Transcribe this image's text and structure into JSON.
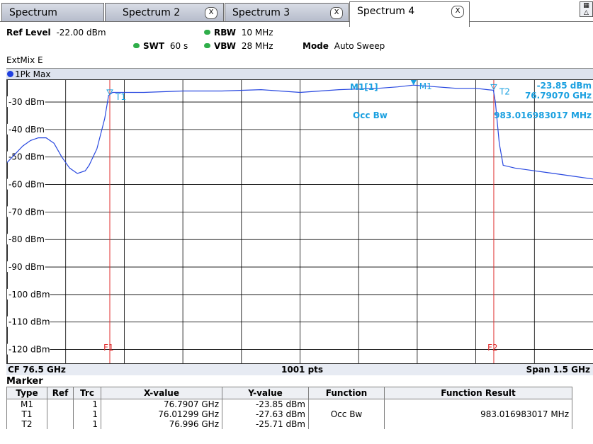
{
  "tabs": [
    {
      "label": "Spectrum",
      "closable": false,
      "active": false
    },
    {
      "label": "Spectrum 2",
      "closable": true,
      "active": false
    },
    {
      "label": "Spectrum 3",
      "closable": true,
      "active": false
    },
    {
      "label": "Spectrum 4",
      "closable": true,
      "active": true
    }
  ],
  "close_glyph": "X",
  "header": {
    "ref_level_label": "Ref Level",
    "ref_level_value": "-22.00 dBm",
    "rbw_label": "RBW",
    "rbw_value": "10 MHz",
    "swt_label": "SWT",
    "swt_value": "60 s",
    "vbw_label": "VBW",
    "vbw_value": "28 MHz",
    "mode_label": "Mode",
    "mode_value": "Auto Sweep",
    "mixer": "ExtMix E"
  },
  "trace_label": "1Pk Max",
  "axis": {
    "cf": "CF 76.5 GHz",
    "pts": "1001 pts",
    "span": "Span 1.5 GHz"
  },
  "overlay": {
    "m1_readout_label": "M1[1]",
    "m1_level": "-23.85 dBm",
    "m1_freq": "76.79070 GHz",
    "occbw_label": "Occ Bw",
    "occbw_value": "983.016983017 MHz",
    "markers": [
      "T1",
      "M1",
      "T2"
    ],
    "lines": [
      "F1",
      "F2"
    ]
  },
  "colors": {
    "trace": "#2848e0",
    "marker": "#1aa0e0",
    "limit_line": "#e03030",
    "grid": "#000000"
  },
  "chart_data": {
    "type": "line",
    "x_unit": "GHz",
    "y_unit": "dBm",
    "xlim": [
      75.75,
      77.25
    ],
    "ylim": [
      -125,
      -22
    ],
    "yticks": [
      {
        "value": -30,
        "label": "-30 dBm"
      },
      {
        "value": -40,
        "label": "-40 dBm"
      },
      {
        "value": -50,
        "label": "-50 dBm"
      },
      {
        "value": -60,
        "label": "-60 dBm"
      },
      {
        "value": -70,
        "label": "-70 dBm"
      },
      {
        "value": -80,
        "label": "-80 dBm"
      },
      {
        "value": -90,
        "label": "-90 dBm"
      },
      {
        "value": -100,
        "label": "-100 dBm"
      },
      {
        "value": -110,
        "label": "-110 dBm"
      },
      {
        "value": -120,
        "label": "-120 dBm"
      }
    ],
    "grid": true,
    "series": [
      {
        "x": [
          75.75,
          75.77,
          75.79,
          75.81,
          75.83,
          75.85,
          75.87,
          75.89,
          75.91,
          75.93,
          75.95,
          75.96,
          75.98,
          76.0,
          76.01,
          76.02,
          76.05,
          76.1,
          76.2,
          76.3,
          76.4,
          76.5,
          76.6,
          76.7,
          76.75,
          76.79,
          76.85,
          76.9,
          76.95,
          76.98,
          76.995,
          77.0,
          77.01,
          77.02,
          77.05,
          77.1,
          77.15,
          77.2,
          77.25
        ],
        "y": [
          -52,
          -49,
          -46,
          -44,
          -43,
          -43,
          -45,
          -50,
          -54,
          -56,
          -55,
          -53,
          -47,
          -36,
          -27.6,
          -26.5,
          -26.5,
          -26.5,
          -26,
          -26,
          -25.5,
          -26.5,
          -25.5,
          -25,
          -24.5,
          -23.85,
          -24.5,
          -25,
          -25,
          -25.5,
          -25.7,
          -30,
          -45,
          -53,
          -54,
          -55,
          -56,
          -57,
          -58
        ]
      }
    ],
    "markers": [
      {
        "name": "M1",
        "x": 76.7907,
        "y": -23.85
      },
      {
        "name": "T1",
        "x": 76.01299,
        "y": -27.63
      },
      {
        "name": "T2",
        "x": 76.996,
        "y": -25.71
      }
    ],
    "vlines": [
      {
        "name": "F1",
        "x": 76.01299
      },
      {
        "name": "F2",
        "x": 76.996
      }
    ]
  },
  "marker_table": {
    "title": "Marker",
    "headers": [
      "Type",
      "Ref",
      "Trc",
      "X-value",
      "Y-value",
      "Function",
      "Function Result"
    ],
    "rows": [
      [
        "M1",
        "",
        "1",
        "76.7907 GHz",
        "-23.85 dBm",
        "",
        ""
      ],
      [
        "T1",
        "",
        "1",
        "76.01299 GHz",
        "-27.63 dBm",
        "Occ Bw",
        "983.016983017 MHz"
      ],
      [
        "T2",
        "",
        "1",
        "76.996 GHz",
        "-25.71 dBm",
        "",
        ""
      ]
    ]
  }
}
